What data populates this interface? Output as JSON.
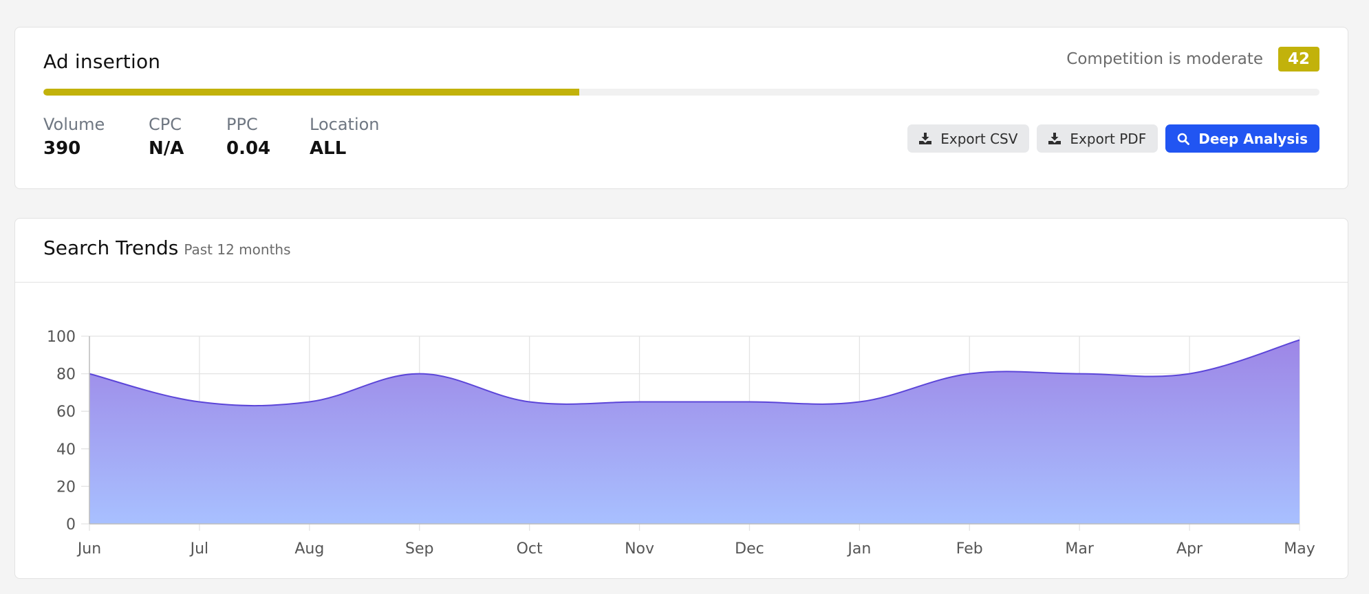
{
  "keyword": {
    "title": "Ad insertion",
    "competition_label": "Competition is moderate",
    "competition_score": "42",
    "competition_progress_fraction": 0.42,
    "accent_color": "#c2b20b"
  },
  "metrics": [
    {
      "label": "Volume",
      "value": "390"
    },
    {
      "label": "CPC",
      "value": "N/A"
    },
    {
      "label": "PPC",
      "value": "0.04"
    },
    {
      "label": "Location",
      "value": "ALL"
    }
  ],
  "actions": {
    "export_csv": {
      "label": "Export CSV",
      "icon": "download-icon"
    },
    "export_pdf": {
      "label": "Export PDF",
      "icon": "download-icon"
    },
    "deep_analysis": {
      "label": "Deep Analysis",
      "icon": "search-icon",
      "color": "#2155f2"
    }
  },
  "trends": {
    "title": "Search Trends",
    "subtitle": "Past 12 months"
  },
  "chart_data": {
    "type": "area",
    "categories": [
      "Jun",
      "Jul",
      "Aug",
      "Sep",
      "Oct",
      "Nov",
      "Dec",
      "Jan",
      "Feb",
      "Mar",
      "Apr",
      "May"
    ],
    "values": [
      80,
      65,
      65,
      80,
      65,
      65,
      65,
      65,
      80,
      80,
      80,
      98
    ],
    "ylim": [
      0,
      100
    ],
    "yticks": [
      0,
      20,
      40,
      60,
      80,
      100
    ],
    "grid": true,
    "line_color": "#5b45d8",
    "fill_top_color": "#9d86e6",
    "fill_bottom_color": "#a8c0ff"
  }
}
